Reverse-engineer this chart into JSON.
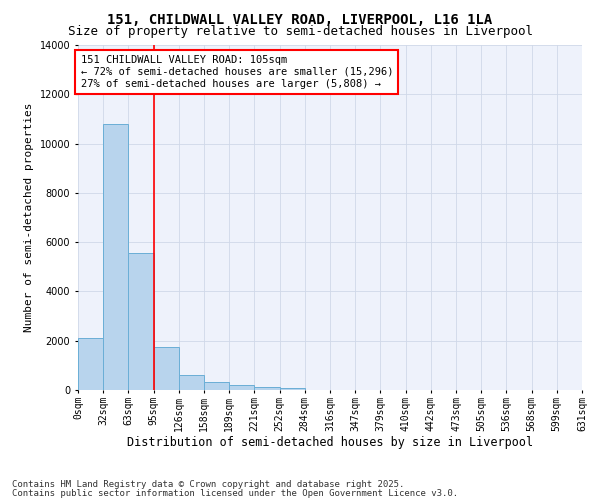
{
  "title_line1": "151, CHILDWALL VALLEY ROAD, LIVERPOOL, L16 1LA",
  "title_line2": "Size of property relative to semi-detached houses in Liverpool",
  "xlabel": "Distribution of semi-detached houses by size in Liverpool",
  "ylabel": "Number of semi-detached properties",
  "bin_labels": [
    "0sqm",
    "32sqm",
    "63sqm",
    "95sqm",
    "126sqm",
    "158sqm",
    "189sqm",
    "221sqm",
    "252sqm",
    "284sqm",
    "316sqm",
    "347sqm",
    "379sqm",
    "410sqm",
    "442sqm",
    "473sqm",
    "505sqm",
    "536sqm",
    "568sqm",
    "599sqm",
    "631sqm"
  ],
  "bar_values": [
    2100,
    10800,
    5550,
    1750,
    620,
    310,
    190,
    130,
    70,
    0,
    0,
    0,
    0,
    0,
    0,
    0,
    0,
    0,
    0,
    0
  ],
  "bar_color": "#b8d4ed",
  "bar_edge_color": "#6aaed6",
  "vline_color": "red",
  "vline_x": 3.0,
  "ylim": [
    0,
    14000
  ],
  "yticks": [
    0,
    2000,
    4000,
    6000,
    8000,
    10000,
    12000,
    14000
  ],
  "grid_color": "#d0d8e8",
  "bg_color": "#eef2fb",
  "annotation_line1": "151 CHILDWALL VALLEY ROAD: 105sqm",
  "annotation_line2": "← 72% of semi-detached houses are smaller (15,296)",
  "annotation_line3": "27% of semi-detached houses are larger (5,808) →",
  "footer_line1": "Contains HM Land Registry data © Crown copyright and database right 2025.",
  "footer_line2": "Contains public sector information licensed under the Open Government Licence v3.0.",
  "title_fontsize": 10,
  "subtitle_fontsize": 9,
  "xlabel_fontsize": 8.5,
  "ylabel_fontsize": 8,
  "tick_fontsize": 7,
  "footer_fontsize": 6.5,
  "annotation_fontsize": 7.5
}
